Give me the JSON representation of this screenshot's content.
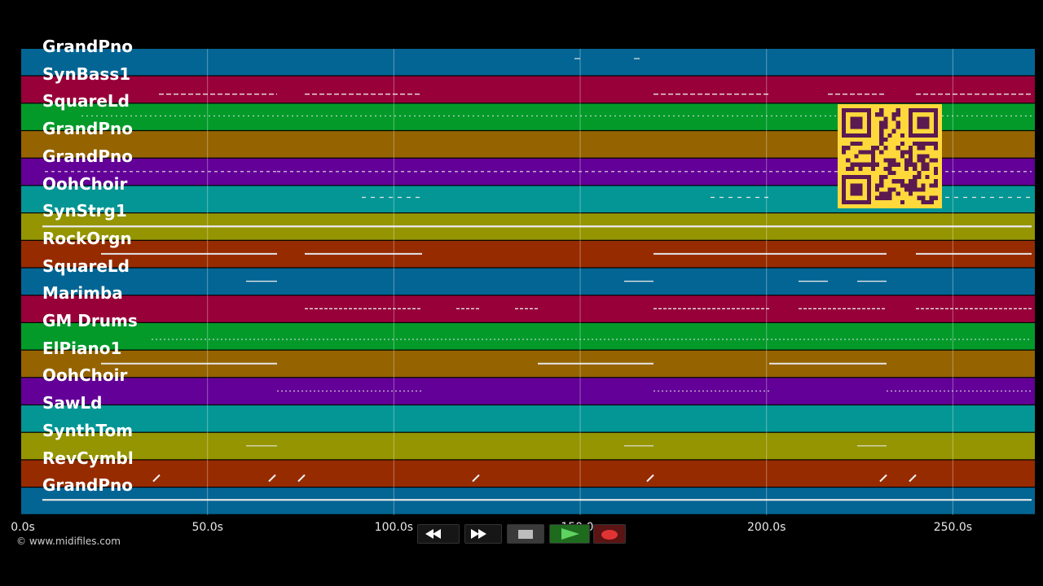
{
  "tracks": [
    {
      "name": "GrandPno",
      "color": "#036594"
    },
    {
      "name": "SynBass1",
      "color": "#98003a"
    },
    {
      "name": "SquareLd",
      "color": "#039a2a"
    },
    {
      "name": "GrandPno",
      "color": "#956300"
    },
    {
      "name": "GrandPno",
      "color": "#630097"
    },
    {
      "name": "OohChoir",
      "color": "#049695"
    },
    {
      "name": "SynStrg1",
      "color": "#959501"
    },
    {
      "name": "RockOrgn",
      "color": "#962b00"
    },
    {
      "name": "SquareLd",
      "color": "#036594"
    },
    {
      "name": "Marimba",
      "color": "#98003a"
    },
    {
      "name": "GM Drums",
      "color": "#039a2a"
    },
    {
      "name": "ElPiano1",
      "color": "#956300"
    },
    {
      "name": "OohChoir",
      "color": "#630097"
    },
    {
      "name": "SawLd",
      "color": "#049695"
    },
    {
      "name": "SynthTom",
      "color": "#959501"
    },
    {
      "name": "RevCymbl",
      "color": "#962b00"
    },
    {
      "name": "GrandPno",
      "color": "#036594"
    }
  ],
  "timeline": {
    "max_seconds": 272,
    "tick_labels": [
      "0.0s",
      "50.0s",
      "100.0s",
      "150.0s",
      "200.0s",
      "250.0s"
    ]
  },
  "copyright": "© www.midifiles.com",
  "transport": {
    "rewind": "rewind-icon",
    "fast_forward": "fast-forward-icon",
    "stop": "stop-icon",
    "play": "play-icon",
    "record": "record-icon"
  },
  "qr_code": {
    "fg": "#5b1a50",
    "bg": "#ffd93b"
  }
}
